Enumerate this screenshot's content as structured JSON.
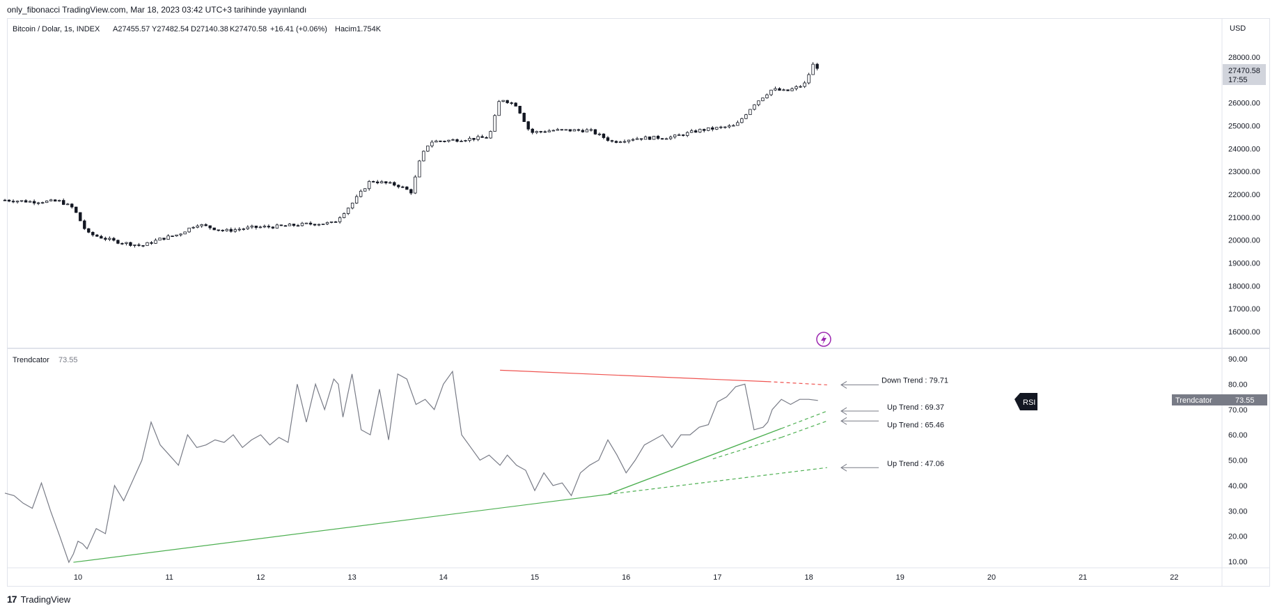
{
  "header": {
    "publish_line": "only_fibonacci TradingView.com, Mar 18, 2023 03:42 UTC+3 tarihinde yayınlandı"
  },
  "price_pane": {
    "symbol": "Bitcoin / Dolar, 1s, INDEX",
    "ohlc": [
      {
        "label": "A",
        "value": "27455.57"
      },
      {
        "label": "Y",
        "value": "27482.54"
      },
      {
        "label": "D",
        "value": "27140.38"
      },
      {
        "label": "K",
        "value": "27470.58"
      }
    ],
    "change": "+16.41 (+0.06%)",
    "volume_label": "Hacim",
    "volume_value": "1.754K",
    "currency": "USD",
    "last_price": "27470.58",
    "countdown": "17:55",
    "y_ticks": [
      "28000.00",
      "27000.00",
      "26000.00",
      "25000.00",
      "24000.00",
      "23000.00",
      "22000.00",
      "21000.00",
      "20000.00",
      "19000.00",
      "18000.00",
      "17000.00",
      "16000.00"
    ]
  },
  "indicator_pane": {
    "name": "Trendcator",
    "value": "73.55",
    "y_ticks": [
      "90.00",
      "80.00",
      "70.00",
      "60.00",
      "50.00",
      "40.00",
      "30.00",
      "20.00",
      "10.00"
    ],
    "labels": [
      {
        "text": "Down Trend : 79.71",
        "value": 79.71,
        "color": "#ef5350"
      },
      {
        "text": "Up Trend : 69.37",
        "value": 69.37,
        "color": "#4caf50"
      },
      {
        "text": "Up Trend : 65.46",
        "value": 65.46,
        "color": "#4caf50"
      },
      {
        "text": "Up Trend : 47.06",
        "value": 47.06,
        "color": "#4caf50"
      }
    ],
    "badge": "RSI",
    "tag_label": "Trendcator",
    "tag_value": "73.55"
  },
  "x_axis": {
    "ticks": [
      "10",
      "11",
      "12",
      "13",
      "14",
      "15",
      "16",
      "17",
      "18",
      "19",
      "20",
      "21",
      "22"
    ]
  },
  "footer": {
    "brand": "TradingView",
    "logo": "17"
  },
  "colors": {
    "down_trend": "#ef5350",
    "up_trend": "#4caf50",
    "oscillator": "#787b86",
    "candle": "#131722",
    "tag_bg": "#787b86"
  },
  "chart_data": [
    {
      "type": "candlestick",
      "title": "Bitcoin / Dolar, 1s, INDEX",
      "ylim": [
        15500,
        28500
      ],
      "x_range": [
        9.2,
        22.5
      ],
      "close_path": [
        [
          9.2,
          21750
        ],
        [
          9.5,
          21680
        ],
        [
          9.8,
          21700
        ],
        [
          9.95,
          21400
        ],
        [
          10.1,
          20300
        ],
        [
          10.4,
          19950
        ],
        [
          10.7,
          19750
        ],
        [
          10.9,
          20050
        ],
        [
          11.1,
          20250
        ],
        [
          11.3,
          20700
        ],
        [
          11.6,
          20400
        ],
        [
          11.9,
          20550
        ],
        [
          12.2,
          20600
        ],
        [
          12.5,
          20700
        ],
        [
          12.8,
          20750
        ],
        [
          13.0,
          21600
        ],
        [
          13.2,
          22600
        ],
        [
          13.5,
          22400
        ],
        [
          13.65,
          22100
        ],
        [
          13.75,
          23600
        ],
        [
          13.85,
          24300
        ],
        [
          14.2,
          24400
        ],
        [
          14.5,
          24500
        ],
        [
          14.62,
          26200
        ],
        [
          14.8,
          25900
        ],
        [
          14.95,
          24700
        ],
        [
          15.2,
          24800
        ],
        [
          15.6,
          24800
        ],
        [
          15.85,
          24300
        ],
        [
          16.1,
          24450
        ],
        [
          16.5,
          24500
        ],
        [
          16.8,
          24800
        ],
        [
          17.2,
          25000
        ],
        [
          17.4,
          25950
        ],
        [
          17.6,
          26600
        ],
        [
          17.75,
          26500
        ],
        [
          17.95,
          26800
        ],
        [
          18.05,
          27700
        ],
        [
          18.12,
          27470
        ]
      ]
    },
    {
      "type": "line",
      "title": "Trendcator",
      "ylim": [
        8,
        92
      ],
      "x": [
        9.2,
        9.3,
        9.4,
        9.5,
        9.6,
        9.7,
        9.8,
        9.9,
        9.95,
        10.0,
        10.05,
        10.1,
        10.2,
        10.3,
        10.4,
        10.5,
        10.6,
        10.7,
        10.8,
        10.9,
        11.0,
        11.1,
        11.2,
        11.3,
        11.4,
        11.5,
        11.6,
        11.7,
        11.8,
        11.9,
        12.0,
        12.1,
        12.2,
        12.3,
        12.4,
        12.5,
        12.6,
        12.7,
        12.8,
        12.85,
        12.9,
        13.0,
        13.1,
        13.2,
        13.3,
        13.4,
        13.5,
        13.6,
        13.7,
        13.8,
        13.9,
        14.0,
        14.1,
        14.2,
        14.3,
        14.4,
        14.5,
        14.62,
        14.7,
        14.8,
        14.9,
        15.0,
        15.1,
        15.2,
        15.3,
        15.4,
        15.5,
        15.6,
        15.7,
        15.8,
        15.9,
        16.0,
        16.1,
        16.2,
        16.3,
        16.4,
        16.5,
        16.6,
        16.7,
        16.8,
        16.9,
        17.0,
        17.1,
        17.2,
        17.3,
        17.4,
        17.5,
        17.55,
        17.6,
        17.7,
        17.8,
        17.9,
        18.0,
        18.1
      ],
      "y": [
        37,
        36,
        33,
        31,
        41,
        30,
        20,
        9.7,
        13,
        18,
        17,
        15,
        23,
        21,
        40,
        34,
        42,
        50,
        65,
        56,
        52,
        48,
        60,
        55,
        56,
        58,
        57,
        60,
        55,
        58,
        60,
        56,
        59,
        57,
        80,
        65,
        80,
        70,
        82,
        80,
        67,
        84,
        62,
        60,
        78,
        58,
        84,
        82,
        72,
        74,
        70,
        80,
        85,
        60,
        55,
        50,
        52,
        48,
        52,
        48,
        46,
        38,
        45,
        40,
        41,
        36,
        45,
        48,
        50,
        58,
        52,
        45,
        50,
        56,
        58,
        60,
        55,
        60,
        60,
        63,
        64,
        73,
        75,
        79,
        80,
        62,
        63,
        65,
        70,
        74,
        72,
        74,
        74,
        73.55
      ]
    }
  ]
}
